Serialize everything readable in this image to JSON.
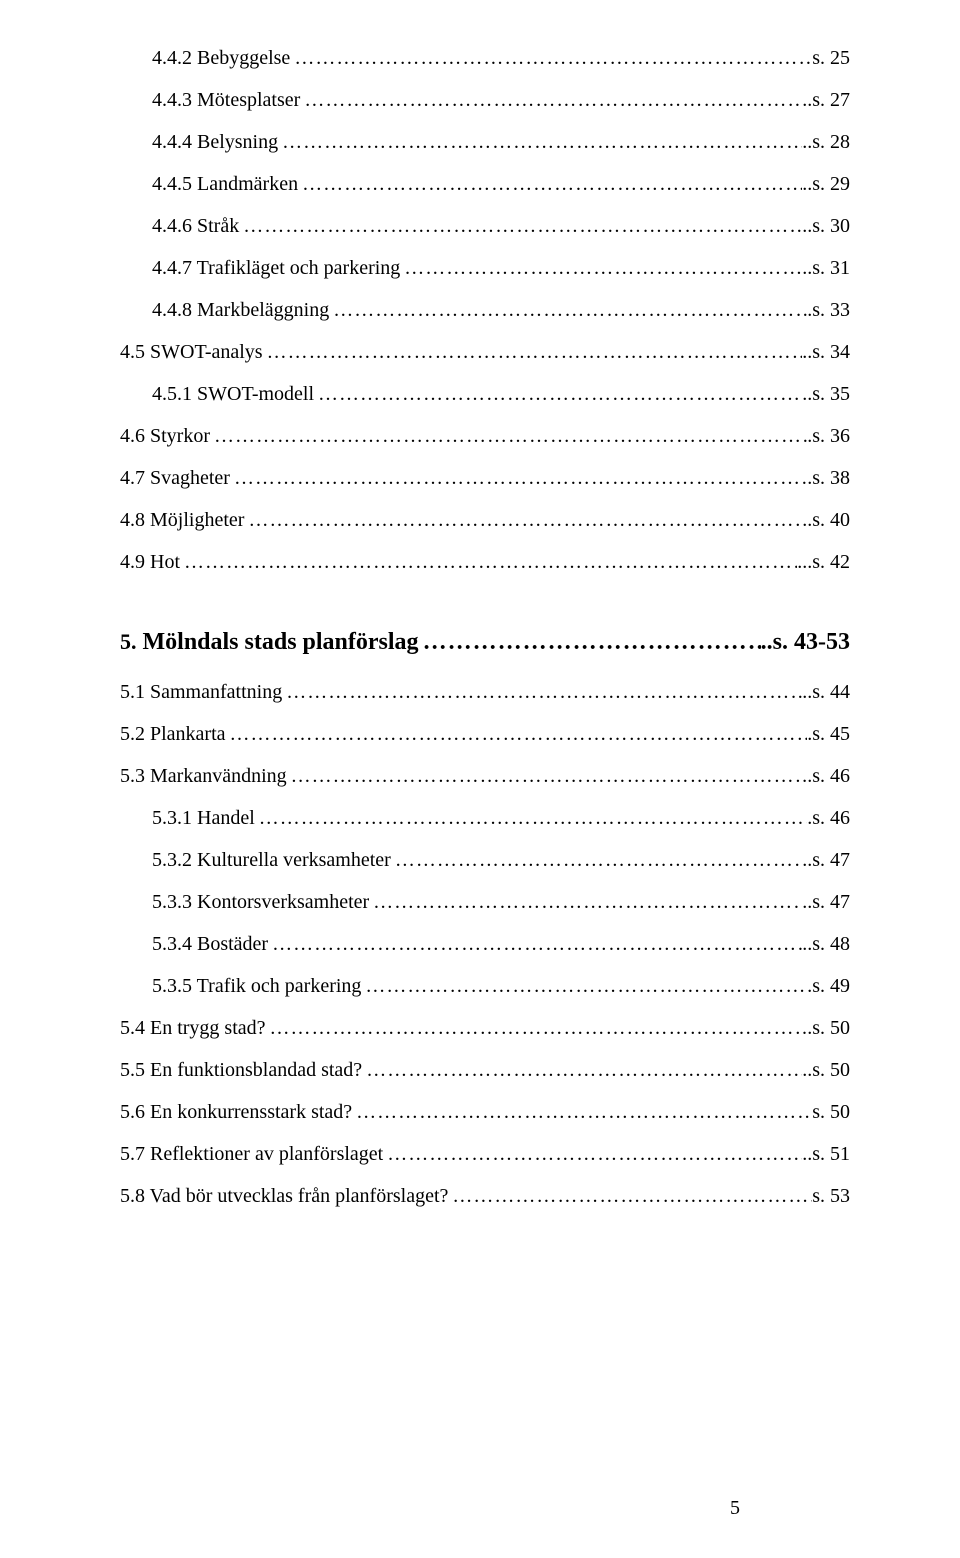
{
  "block1": [
    {
      "level": 2,
      "label": "4.4.2 Bebyggelse",
      "page": "s. 25"
    },
    {
      "level": 2,
      "label": "4.4.3 Mötesplatser",
      "page": "..s. 27"
    },
    {
      "level": 2,
      "label": "4.4.4 Belysning",
      "page": "..s. 28"
    },
    {
      "level": 2,
      "label": "4.4.5 Landmärken",
      "page": "..s. 29"
    },
    {
      "level": 2,
      "label": "4.4.6 Stråk",
      "page": "..s. 30"
    },
    {
      "level": 2,
      "label": "4.4.7 Trafikläget och parkering",
      "page": "..s. 31"
    },
    {
      "level": 2,
      "label": "4.4.8 Markbeläggning",
      "page": ".s. 33"
    },
    {
      "level": 1,
      "label": "4.5 SWOT-analys",
      "page": "..s. 34"
    },
    {
      "level": 2,
      "label": "4.5.1 SWOT-modell",
      "page": "..s. 35"
    },
    {
      "level": 1,
      "label": "4.6 Styrkor",
      "page": ".s. 36"
    },
    {
      "level": 1,
      "label": "4.7 Svagheter",
      "page": ".s. 38"
    },
    {
      "level": 1,
      "label": "4.8 Möjligheter",
      "page": "..s. 40"
    },
    {
      "level": 1,
      "label": "4.9 Hot",
      "page": "...s. 42"
    }
  ],
  "section": {
    "num": "5.",
    "title": "Mölndals stads planförslag",
    "range": "..s. 43-53"
  },
  "block2": [
    {
      "level": 1,
      "label": "5.1 Sammanfattning",
      "page": "..s. 44"
    },
    {
      "level": 1,
      "label": "5.2 Plankarta",
      "page": ".s. 45"
    },
    {
      "level": 1,
      "label": "5.3 Markanvändning",
      "page": ".s. 46"
    },
    {
      "level": 2,
      "label": "5.3.1 Handel",
      "page": ".s. 46"
    },
    {
      "level": 2,
      "label": "5.3.2 Kulturella verksamheter",
      "page": "..s. 47"
    },
    {
      "level": 2,
      "label": "5.3.3 Kontorsverksamheter",
      "page": "..s. 47"
    },
    {
      "level": 2,
      "label": "5.3.4 Bostäder",
      "page": "..s. 48"
    },
    {
      "level": 2,
      "label": "5.3.5 Trafik och parkering",
      "page": "s. 49"
    },
    {
      "level": 1,
      "label": "5.4 En trygg stad?",
      "page": ".s. 50"
    },
    {
      "level": 1,
      "label": "5.5 En funktionsblandad stad?",
      "page": "..s. 50"
    },
    {
      "level": 1,
      "label": "5.6 En konkurrensstark stad?",
      "page": "s. 50"
    },
    {
      "level": 1,
      "label": "5.7 Reflektioner av planförslaget",
      "page": "..s. 51"
    },
    {
      "level": 1,
      "label": "5.8 Vad bör utvecklas från planförslaget?",
      "page": "s. 53"
    }
  ],
  "pageNumber": "5",
  "leaderDots": "……………………………………………………………………………………………………………………………………"
}
